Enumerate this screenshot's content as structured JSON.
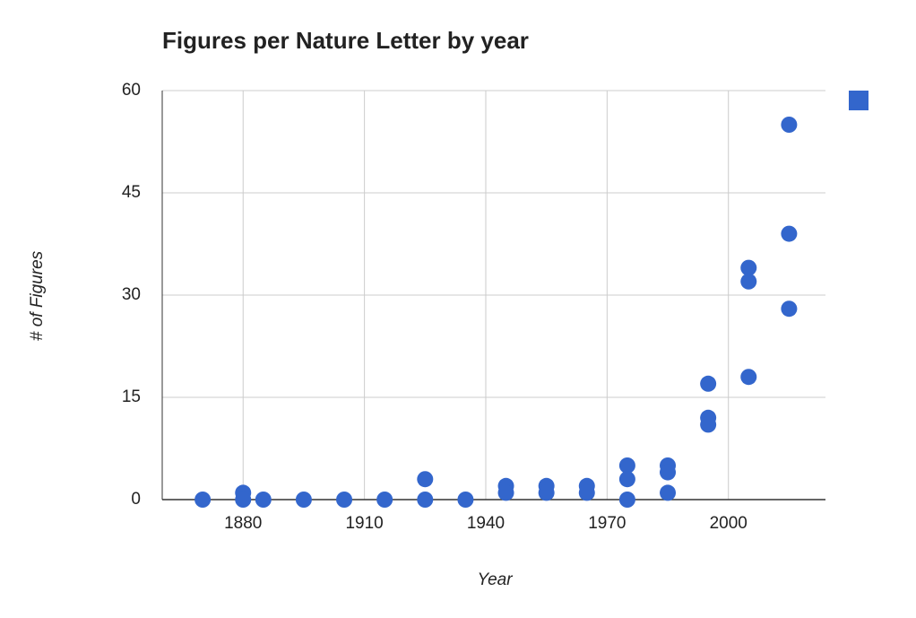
{
  "chart_data": {
    "type": "scatter",
    "title": "Figures per Nature Letter by year",
    "x_label": "Year",
    "y_label": "# of Figures",
    "x": [
      1870,
      1880,
      1880,
      1885,
      1895,
      1905,
      1915,
      1925,
      1925,
      1935,
      1945,
      1945,
      1955,
      1955,
      1965,
      1965,
      1975,
      1975,
      1975,
      1985,
      1985,
      1985,
      1995,
      1995,
      1995,
      2005,
      2005,
      2005,
      2015,
      2015,
      2015
    ],
    "series": [
      {
        "color": "#3366cc",
        "values": [
          0,
          1,
          0,
          0,
          0,
          0,
          0,
          3,
          0,
          0,
          2,
          1,
          2,
          1,
          2,
          1,
          5,
          3,
          0,
          5,
          4,
          1,
          17,
          12,
          11,
          34,
          32,
          18,
          55,
          39,
          28
        ]
      }
    ],
    "xlim": [
      1860,
      2024
    ],
    "xticks": [
      1880,
      1910,
      1940,
      1970,
      2000
    ],
    "ylim": [
      0,
      60
    ],
    "yticks": [
      0,
      15,
      30,
      45,
      60
    ],
    "grid": true
  }
}
